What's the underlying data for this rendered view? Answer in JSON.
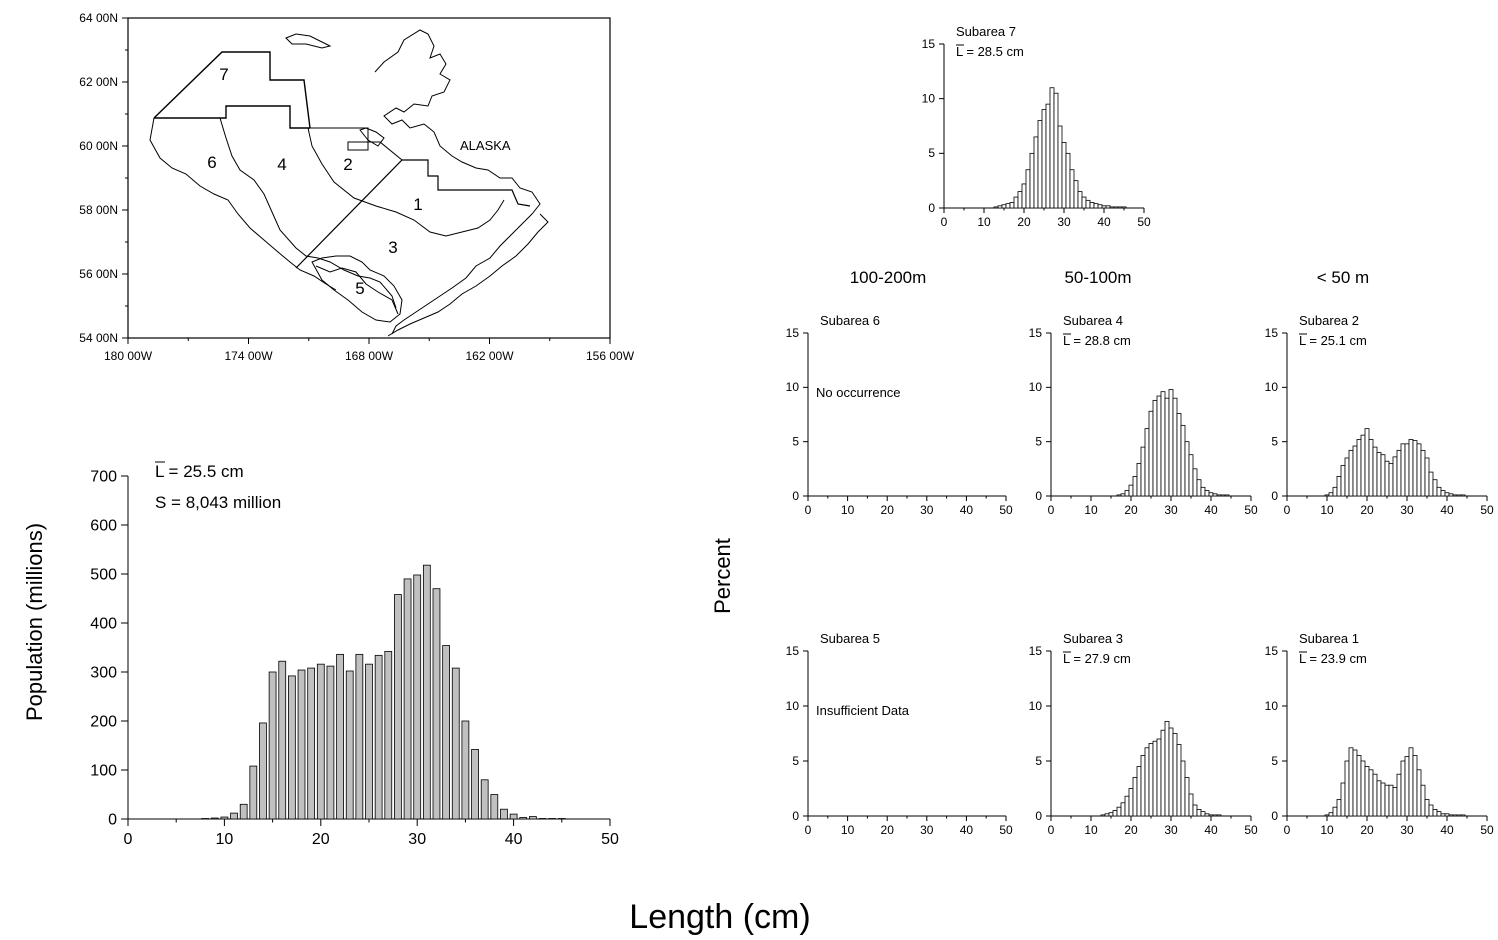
{
  "map": {
    "lat_labels": [
      "64 00N",
      "62 00N",
      "60 00N",
      "58 00N",
      "56 00N",
      "54 00N"
    ],
    "lon_labels": [
      "180 00W",
      "174 00W",
      "168 00W",
      "162 00W",
      "156 00W"
    ],
    "region_label": "ALASKA",
    "subarea_numbers": [
      "7",
      "6",
      "4",
      "2",
      "1",
      "3",
      "5"
    ]
  },
  "depth_labels": [
    "100-200m",
    "50-100m",
    "< 50 m"
  ],
  "y_axis_title": "Percent",
  "x_axis_title": "Length (cm)",
  "chart_data": [
    {
      "type": "bar",
      "id": "total",
      "annotation_mean": "L = 25.5  cm",
      "annotation_total": "S = 8,043 million",
      "ylabel": "Population (millions)",
      "xlim": [
        0,
        50
      ],
      "ylim": [
        0,
        700
      ],
      "xticks": [
        0,
        10,
        20,
        30,
        40,
        50
      ],
      "yticks": [
        0,
        100,
        200,
        300,
        400,
        500,
        600,
        700
      ],
      "x": [
        8,
        9,
        10,
        11,
        12,
        13,
        14,
        15,
        16,
        17,
        18,
        19,
        20,
        21,
        22,
        23,
        24,
        25,
        26,
        27,
        28,
        29,
        30,
        31,
        32,
        33,
        34,
        35,
        36,
        37,
        38,
        39,
        40,
        41,
        42,
        43,
        44,
        45
      ],
      "values": [
        1,
        2,
        4,
        12,
        30,
        108,
        196,
        300,
        322,
        292,
        304,
        308,
        316,
        312,
        336,
        302,
        336,
        316,
        334,
        342,
        458,
        490,
        498,
        518,
        470,
        354,
        308,
        200,
        142,
        80,
        50,
        20,
        10,
        3,
        5,
        1,
        1,
        1
      ]
    },
    {
      "type": "bar",
      "id": "subarea7",
      "title": "Subarea 7",
      "mean": "L = 28.5 cm",
      "xlim": [
        0,
        50
      ],
      "ylim": [
        0,
        15
      ],
      "xticks": [
        0,
        10,
        20,
        30,
        40,
        50
      ],
      "yticks": [
        0,
        5,
        10,
        15
      ],
      "x": [
        13,
        14,
        15,
        16,
        17,
        18,
        19,
        20,
        21,
        22,
        23,
        24,
        25,
        26,
        27,
        28,
        29,
        30,
        31,
        32,
        33,
        34,
        35,
        36,
        37,
        38,
        39,
        40,
        41,
        42,
        43,
        44,
        45
      ],
      "values": [
        0.1,
        0.2,
        0.3,
        0.4,
        0.5,
        1,
        1.5,
        2.2,
        3.5,
        5,
        6.5,
        8,
        9,
        9.5,
        11,
        10.5,
        7.5,
        6,
        5,
        3.5,
        2.5,
        1.5,
        1,
        0.7,
        0.5,
        0.4,
        0.3,
        0.2,
        0.2,
        0.1,
        0.1,
        0.1,
        0.1
      ]
    },
    {
      "type": "bar",
      "id": "subarea6",
      "title": "Subarea 6",
      "note": "No occurrence",
      "xlim": [
        0,
        50
      ],
      "ylim": [
        0,
        15
      ],
      "xticks": [
        0,
        10,
        20,
        30,
        40,
        50
      ],
      "yticks": [
        0,
        5,
        10,
        15
      ],
      "x": [],
      "values": []
    },
    {
      "type": "bar",
      "id": "subarea4",
      "title": "Subarea 4",
      "mean": "L = 28.8 cm",
      "xlim": [
        0,
        50
      ],
      "ylim": [
        0,
        15
      ],
      "xticks": [
        0,
        10,
        20,
        30,
        40,
        50
      ],
      "yticks": [
        0,
        5,
        10,
        15
      ],
      "x": [
        17,
        18,
        19,
        20,
        21,
        22,
        23,
        24,
        25,
        26,
        27,
        28,
        29,
        30,
        31,
        32,
        33,
        34,
        35,
        36,
        37,
        38,
        39,
        40,
        41,
        42,
        43,
        44
      ],
      "values": [
        0.1,
        0.2,
        0.5,
        1,
        1.8,
        3,
        4.5,
        6.2,
        7.8,
        8.8,
        9.2,
        9.6,
        9,
        9.8,
        9,
        7.6,
        6.5,
        5,
        3.8,
        2.5,
        1.5,
        0.8,
        0.5,
        0.3,
        0.2,
        0.1,
        0.1,
        0.1
      ]
    },
    {
      "type": "bar",
      "id": "subarea2",
      "title": "Subarea 2",
      "mean": "L = 25.1 cm",
      "xlim": [
        0,
        50
      ],
      "ylim": [
        0,
        15
      ],
      "xticks": [
        0,
        10,
        20,
        30,
        40,
        50
      ],
      "yticks": [
        0,
        5,
        10,
        15
      ],
      "x": [
        10,
        11,
        12,
        13,
        14,
        15,
        16,
        17,
        18,
        19,
        20,
        21,
        22,
        23,
        24,
        25,
        26,
        27,
        28,
        29,
        30,
        31,
        32,
        33,
        34,
        35,
        36,
        37,
        38,
        39,
        40,
        41,
        42,
        43,
        44
      ],
      "values": [
        0.1,
        0.3,
        0.8,
        1.8,
        2.8,
        3.5,
        4.2,
        4.6,
        5.2,
        5.6,
        6.2,
        5.2,
        4.5,
        4,
        3.8,
        3.2,
        3,
        3.6,
        4.2,
        4.8,
        4.8,
        5.2,
        5.1,
        4.8,
        4.2,
        3.5,
        2.2,
        1.5,
        0.8,
        0.5,
        0.3,
        0.2,
        0.1,
        0.1,
        0.1
      ]
    },
    {
      "type": "bar",
      "id": "subarea5",
      "title": "Subarea 5",
      "note": "Insufficient Data",
      "xlim": [
        0,
        50
      ],
      "ylim": [
        0,
        15
      ],
      "xticks": [
        0,
        10,
        20,
        30,
        40,
        50
      ],
      "yticks": [
        0,
        5,
        10,
        15
      ],
      "x": [],
      "values": []
    },
    {
      "type": "bar",
      "id": "subarea3",
      "title": "Subarea 3",
      "mean": "L = 27.9 cm",
      "xlim": [
        0,
        50
      ],
      "ylim": [
        0,
        15
      ],
      "xticks": [
        0,
        10,
        20,
        30,
        40,
        50
      ],
      "yticks": [
        0,
        5,
        10,
        15
      ],
      "x": [
        13,
        14,
        15,
        16,
        17,
        18,
        19,
        20,
        21,
        22,
        23,
        24,
        25,
        26,
        27,
        28,
        29,
        30,
        31,
        32,
        33,
        34,
        35,
        36,
        37,
        38,
        39,
        40,
        41,
        42
      ],
      "values": [
        0.1,
        0.2,
        0.3,
        0.5,
        0.8,
        1.2,
        1.8,
        2.5,
        3.5,
        4.5,
        5.5,
        6.2,
        6.6,
        6.8,
        7,
        7.8,
        8.6,
        8,
        7.5,
        6.5,
        5,
        3.5,
        2,
        1,
        0.6,
        0.4,
        0.2,
        0.1,
        0.1,
        0.1
      ]
    },
    {
      "type": "bar",
      "id": "subarea1",
      "title": "Subarea 1",
      "mean": "L = 23.9 cm",
      "xlim": [
        0,
        50
      ],
      "ylim": [
        0,
        15
      ],
      "xticks": [
        0,
        10,
        20,
        30,
        40,
        50
      ],
      "yticks": [
        0,
        5,
        10,
        15
      ],
      "x": [
        10,
        11,
        12,
        13,
        14,
        15,
        16,
        17,
        18,
        19,
        20,
        21,
        22,
        23,
        24,
        25,
        26,
        27,
        28,
        29,
        30,
        31,
        32,
        33,
        34,
        35,
        36,
        37,
        38,
        39,
        40,
        41,
        42,
        43,
        44
      ],
      "values": [
        0.1,
        0.3,
        0.8,
        1.5,
        3,
        5,
        6.2,
        6,
        5.5,
        5,
        4.5,
        4.2,
        3.8,
        3.2,
        3,
        2.8,
        2.8,
        2.6,
        3.8,
        5,
        5.4,
        6.2,
        5.5,
        4.2,
        2.8,
        1.5,
        1,
        0.6,
        0.4,
        0.2,
        0.2,
        0.1,
        0.1,
        0.1,
        0.1
      ]
    }
  ]
}
